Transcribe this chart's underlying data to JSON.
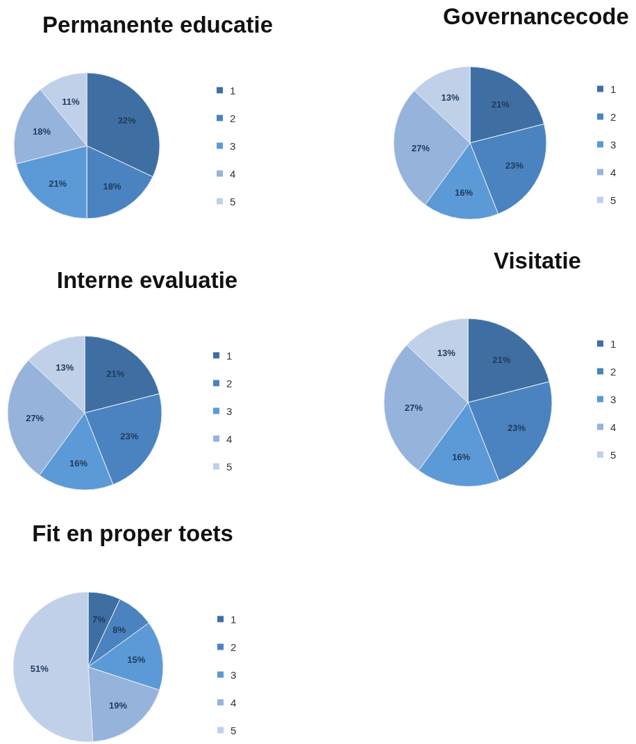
{
  "chart_data": [
    {
      "type": "pie",
      "title": "Permanente educatie",
      "categories": [
        "1",
        "2",
        "3",
        "4",
        "5"
      ],
      "values": [
        32,
        18,
        21,
        18,
        11
      ],
      "colors": [
        "#3f6fa2",
        "#4a83bf",
        "#5b9ad6",
        "#96b3dc",
        "#bfd0e8"
      ],
      "value_labels": [
        "32%",
        "18%",
        "21%",
        "18%",
        "11%"
      ],
      "legend": "right"
    },
    {
      "type": "pie",
      "title": "Governancecode",
      "categories": [
        "1",
        "2",
        "3",
        "4",
        "5"
      ],
      "values": [
        21,
        23,
        16,
        27,
        13
      ],
      "colors": [
        "#3f6fa2",
        "#4a83bf",
        "#5b9ad6",
        "#96b3dc",
        "#bfd0e8"
      ],
      "value_labels": [
        "21%",
        "23%",
        "16%",
        "27%",
        "13%"
      ],
      "legend": "right"
    },
    {
      "type": "pie",
      "title": "Interne evaluatie",
      "categories": [
        "1",
        "2",
        "3",
        "4",
        "5"
      ],
      "values": [
        21,
        23,
        16,
        27,
        13
      ],
      "colors": [
        "#3f6fa2",
        "#4a83bf",
        "#5b9ad6",
        "#96b3dc",
        "#bfd0e8"
      ],
      "value_labels": [
        "21%",
        "23%",
        "16%",
        "27%",
        "13%"
      ],
      "legend": "right"
    },
    {
      "type": "pie",
      "title": "Visitatie",
      "categories": [
        "1",
        "2",
        "3",
        "4",
        "5"
      ],
      "values": [
        21,
        23,
        16,
        27,
        13
      ],
      "colors": [
        "#3f6fa2",
        "#4a83bf",
        "#5b9ad6",
        "#96b3dc",
        "#bfd0e8"
      ],
      "value_labels": [
        "21%",
        "23%",
        "16%",
        "27%",
        "13%"
      ],
      "legend": "right"
    },
    {
      "type": "pie",
      "title": "Fit en proper toets",
      "categories": [
        "1",
        "2",
        "3",
        "4",
        "5"
      ],
      "values": [
        7,
        8,
        15,
        19,
        51
      ],
      "colors": [
        "#3f6fa2",
        "#4a83bf",
        "#5b9ad6",
        "#96b3dc",
        "#bfd0e8"
      ],
      "value_labels": [
        "7%",
        "8%",
        "15%",
        "19%",
        "51%"
      ],
      "legend": "right"
    }
  ]
}
